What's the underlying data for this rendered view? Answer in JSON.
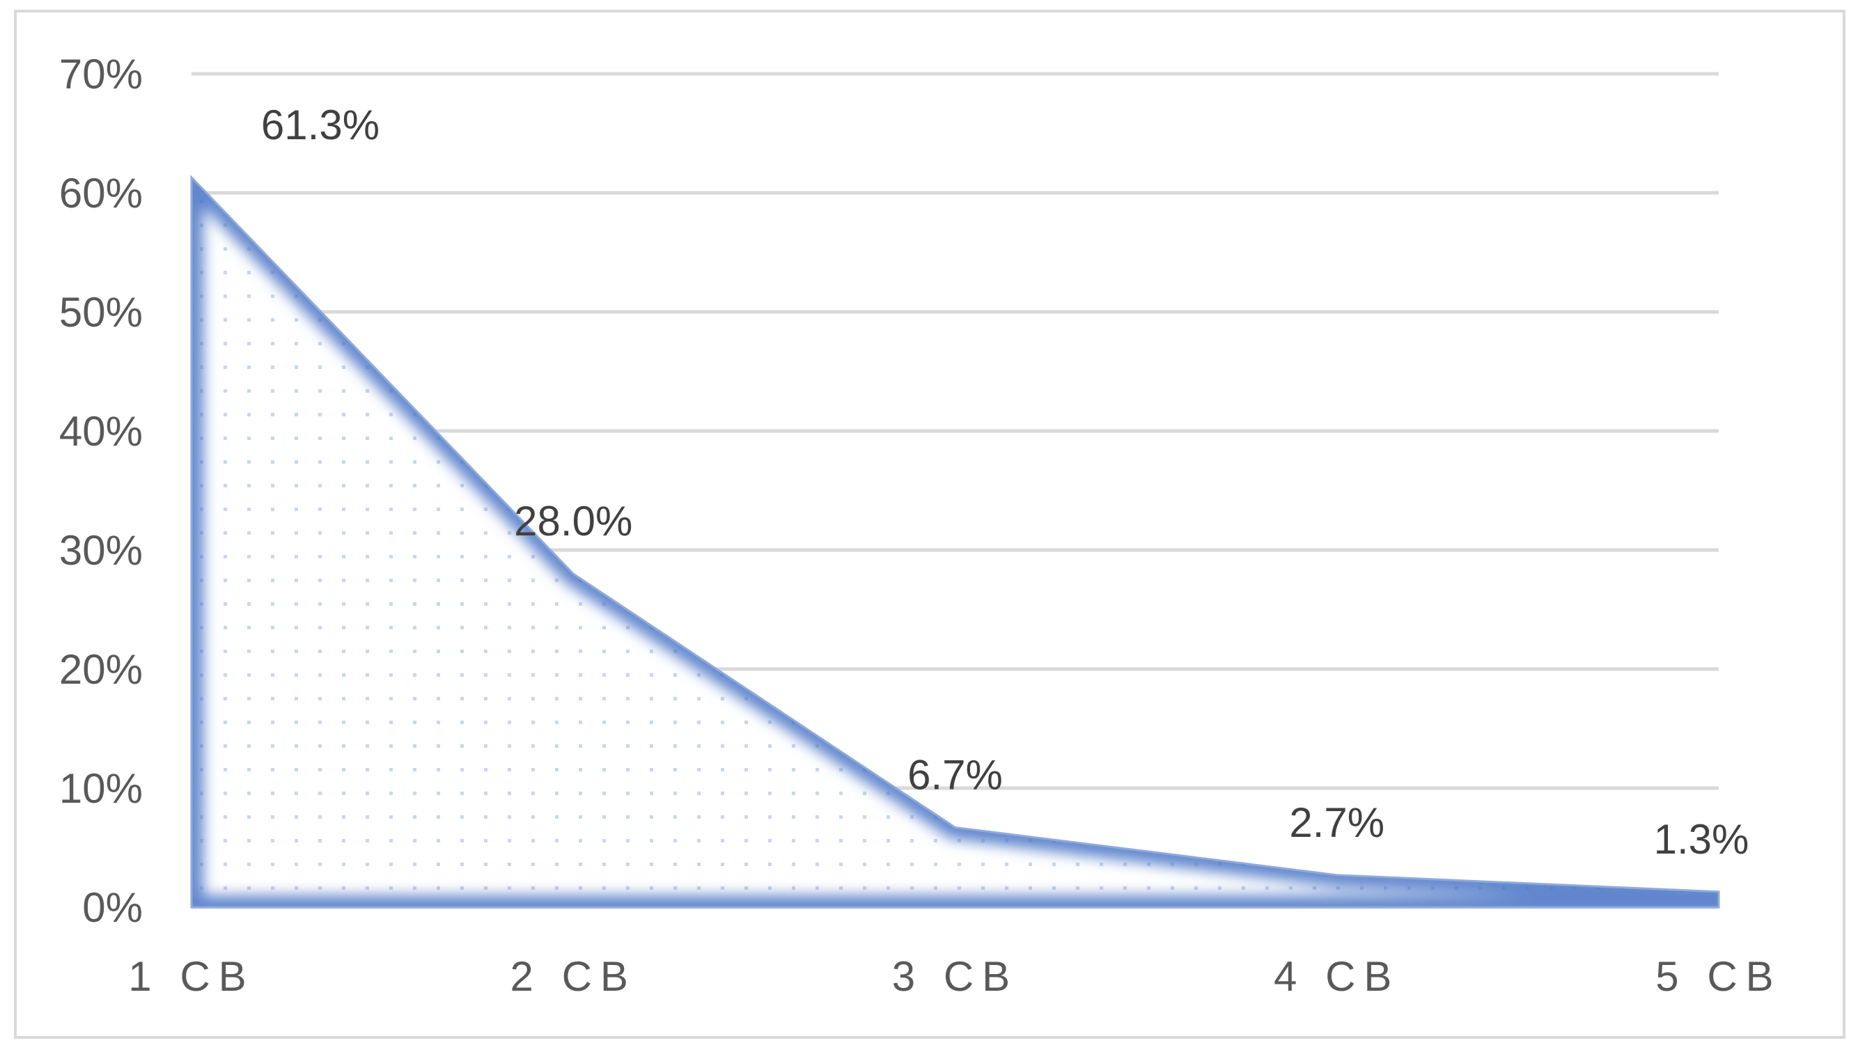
{
  "chart_data": {
    "type": "area",
    "categories": [
      "1 CB",
      "2 CB",
      "3 CB",
      "4 CB",
      "5 CB"
    ],
    "series": [
      {
        "values": [
          61.3,
          28.0,
          6.7,
          2.7,
          1.3
        ],
        "data_labels": [
          "61.3%",
          "28.0%",
          "6.7%",
          "2.7%",
          "1.3%"
        ]
      }
    ],
    "y_ticks": [
      "0%",
      "10%",
      "20%",
      "30%",
      "40%",
      "50%",
      "60%",
      "70%"
    ],
    "ylim": [
      0,
      70
    ],
    "grid": true,
    "legend": "none",
    "colors": {
      "fill": "#4472c4",
      "edge": "#8faadc",
      "grid": "#d9d9d9",
      "text": "#595959"
    }
  }
}
